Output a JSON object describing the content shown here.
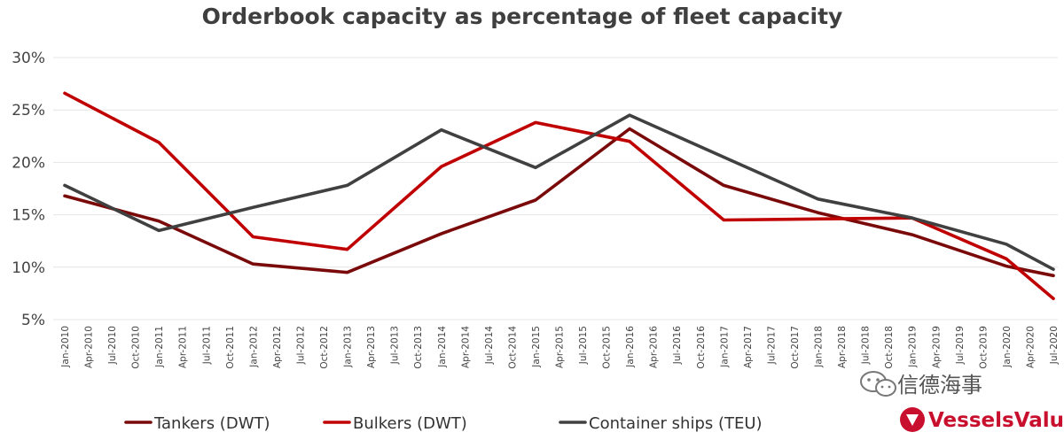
{
  "chart_data": {
    "type": "line",
    "title": "Orderbook capacity as percentage of fleet capacity",
    "xlabel": "",
    "ylabel": "",
    "ylim": [
      5,
      30
    ],
    "yticks": [
      "5%",
      "10%",
      "15%",
      "20%",
      "25%",
      "30%"
    ],
    "ytick_values": [
      5,
      10,
      15,
      20,
      25,
      30
    ],
    "grid": true,
    "legend_position": "bottom",
    "categories": [
      "Jan-2010",
      "Apr-2010",
      "Jul-2010",
      "Oct-2010",
      "Jan-2011",
      "Apr-2011",
      "Jul-2011",
      "Oct-2011",
      "Jan-2012",
      "Apr-2012",
      "Jul-2012",
      "Oct-2012",
      "Jan-2013",
      "Apr-2013",
      "Jul-2013",
      "Oct-2013",
      "Jan-2014",
      "Apr-2014",
      "Jul-2014",
      "Oct-2014",
      "Jan-2015",
      "Apr-2015",
      "Jul-2015",
      "Oct-2015",
      "Jan-2016",
      "Apr-2016",
      "Jul-2016",
      "Oct-2016",
      "Jan-2017",
      "Apr-2017",
      "Jul-2017",
      "Oct-2017",
      "Jan-2018",
      "Apr-2018",
      "Jul-2018",
      "Oct-2018",
      "Jan-2019",
      "Apr-2019",
      "Jul-2019",
      "Oct-2019",
      "Jan-2020",
      "Apr-2020",
      "Jul-2020"
    ],
    "series": [
      {
        "name": "Tankers (DWT)",
        "color": "#7a0a0a",
        "points": [
          [
            "Jan-2010",
            16.8
          ],
          [
            "Jan-2011",
            14.4
          ],
          [
            "Jan-2012",
            10.3
          ],
          [
            "Jan-2013",
            9.5
          ],
          [
            "Jan-2014",
            13.2
          ],
          [
            "Jan-2015",
            16.4
          ],
          [
            "Jan-2016",
            23.2
          ],
          [
            "Jan-2017",
            17.8
          ],
          [
            "Jan-2018",
            15.2
          ],
          [
            "Jan-2019",
            13.1
          ],
          [
            "Jan-2020",
            10.1
          ],
          [
            "Jul-2020",
            9.2
          ]
        ]
      },
      {
        "name": "Bulkers (DWT)",
        "color": "#c00000",
        "points": [
          [
            "Jan-2010",
            26.6
          ],
          [
            "Jan-2011",
            21.9
          ],
          [
            "Jan-2012",
            12.9
          ],
          [
            "Jan-2013",
            11.7
          ],
          [
            "Jan-2014",
            19.6
          ],
          [
            "Jan-2015",
            23.8
          ],
          [
            "Jan-2016",
            22.0
          ],
          [
            "Jan-2017",
            14.5
          ],
          [
            "Jan-2018",
            14.6
          ],
          [
            "Jan-2019",
            14.7
          ],
          [
            "Jan-2020",
            10.8
          ],
          [
            "Jul-2020",
            7.0
          ]
        ]
      },
      {
        "name": "Container ships (TEU)",
        "color": "#404040",
        "points": [
          [
            "Jan-2010",
            17.8
          ],
          [
            "Jan-2011",
            13.5
          ],
          [
            "Jan-2012",
            15.7
          ],
          [
            "Jan-2013",
            17.8
          ],
          [
            "Jan-2014",
            23.1
          ],
          [
            "Jan-2015",
            19.5
          ],
          [
            "Jan-2016",
            24.5
          ],
          [
            "Jan-2017",
            20.5
          ],
          [
            "Jan-2018",
            16.5
          ],
          [
            "Jan-2019",
            14.7
          ],
          [
            "Jan-2020",
            12.2
          ],
          [
            "Jul-2020",
            9.8
          ]
        ]
      }
    ]
  },
  "watermark": {
    "text": "信德海事",
    "icon": "wechat-icon"
  },
  "brand": {
    "name": "VesselsValue",
    "icon": "vesselsvalue-logo-icon",
    "color": "#c8102e"
  }
}
